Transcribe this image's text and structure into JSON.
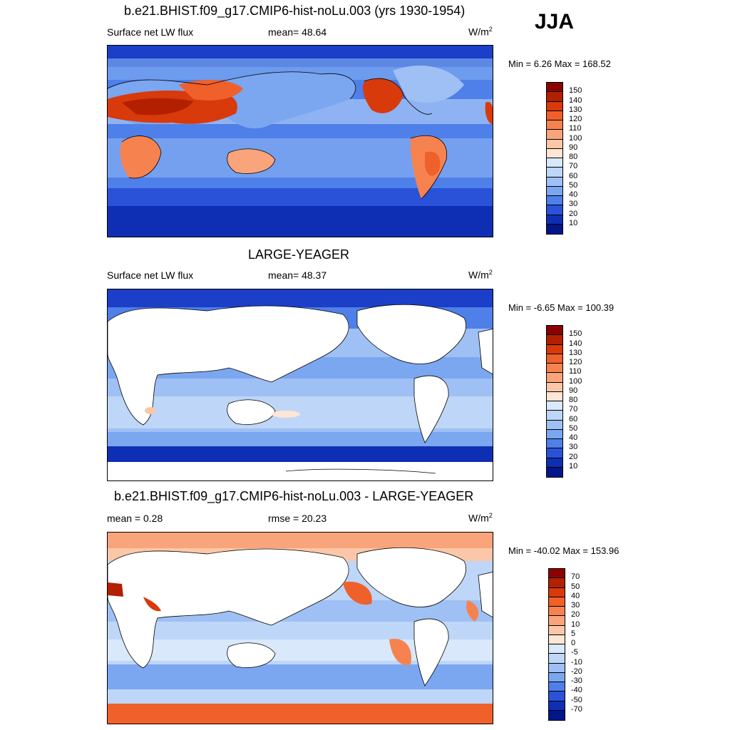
{
  "season": "JJA",
  "panels": [
    {
      "title": "b.e21.BHIST.f09_g17.CMIP6-hist-noLu.003 (yrs 1930-1954)",
      "left_label": "Surface net LW flux",
      "mid_label": "mean=  48.64",
      "units": "W/m",
      "units_sup": "2",
      "minmax": "Min =   6.26 Max = 168.52",
      "colorbar": {
        "ticks": [
          "150",
          "140",
          "130",
          "120",
          "110",
          "100",
          "90",
          "80",
          "70",
          "60",
          "50",
          "40",
          "30",
          "20",
          "10"
        ],
        "colors": [
          "#8b0000",
          "#b22000",
          "#d83a0b",
          "#f0602a",
          "#f6834f",
          "#f9a47a",
          "#fbc7a8",
          "#fde6d6",
          "#d9e8fb",
          "#bed6f7",
          "#9fc0f4",
          "#7ba6f0",
          "#4f7fe8",
          "#2a52d8",
          "#0e2fb4",
          "#00168a"
        ]
      }
    },
    {
      "title": "LARGE-YEAGER",
      "left_label": "Surface net LW flux",
      "mid_label": "mean=  48.37",
      "units": "W/m",
      "units_sup": "2",
      "minmax": "Min =  -6.65 Max = 100.39",
      "colorbar": {
        "ticks": [
          "150",
          "140",
          "130",
          "120",
          "110",
          "100",
          "90",
          "80",
          "70",
          "60",
          "50",
          "40",
          "30",
          "20",
          "10"
        ],
        "colors": [
          "#8b0000",
          "#b22000",
          "#d83a0b",
          "#f0602a",
          "#f6834f",
          "#f9a47a",
          "#fbc7a8",
          "#fde6d6",
          "#d9e8fb",
          "#bed6f7",
          "#9fc0f4",
          "#7ba6f0",
          "#4f7fe8",
          "#2a52d8",
          "#0e2fb4",
          "#00168a"
        ]
      }
    },
    {
      "title": "b.e21.BHIST.f09_g17.CMIP6-hist-noLu.003 - LARGE-YEAGER",
      "left_label": "mean =   0.28",
      "mid_label": "rmse =  20.23",
      "units": "W/m",
      "units_sup": "2",
      "minmax": "Min = -40.02 Max = 153.96",
      "colorbar": {
        "ticks": [
          "70",
          "50",
          "40",
          "30",
          "20",
          "10",
          "5",
          "0",
          "-5",
          "-10",
          "-20",
          "-30",
          "-40",
          "-50",
          "-70"
        ],
        "colors": [
          "#8b0000",
          "#b22000",
          "#d83a0b",
          "#f0602a",
          "#f6834f",
          "#f9a47a",
          "#fbc7a8",
          "#fde6d6",
          "#d9e8fb",
          "#bed6f7",
          "#9fc0f4",
          "#7ba6f0",
          "#4f7fe8",
          "#2a52d8",
          "#0e2fb4",
          "#00168a"
        ]
      }
    }
  ],
  "chart_data": {
    "type": "heatmap",
    "variable": "Surface net LW flux",
    "units": "W/m2",
    "season": "JJA",
    "maps": [
      {
        "title": "b.e21.BHIST.f09_g17.CMIP6-hist-noLu.003 (yrs 1930-1954)",
        "mean": 48.64,
        "min": 6.26,
        "max": 168.52,
        "levels": [
          10,
          20,
          30,
          40,
          50,
          60,
          70,
          80,
          90,
          100,
          110,
          120,
          130,
          140,
          150
        ]
      },
      {
        "title": "LARGE-YEAGER",
        "mean": 48.37,
        "min": -6.65,
        "max": 100.39,
        "levels": [
          10,
          20,
          30,
          40,
          50,
          60,
          70,
          80,
          90,
          100,
          110,
          120,
          130,
          140,
          150
        ]
      },
      {
        "title": "b.e21.BHIST.f09_g17.CMIP6-hist-noLu.003 - LARGE-YEAGER",
        "mean": 0.28,
        "rmse": 20.23,
        "min": -40.02,
        "max": 153.96,
        "levels": [
          -70,
          -50,
          -40,
          -30,
          -20,
          -10,
          -5,
          0,
          5,
          10,
          20,
          30,
          40,
          50,
          70
        ]
      }
    ]
  }
}
